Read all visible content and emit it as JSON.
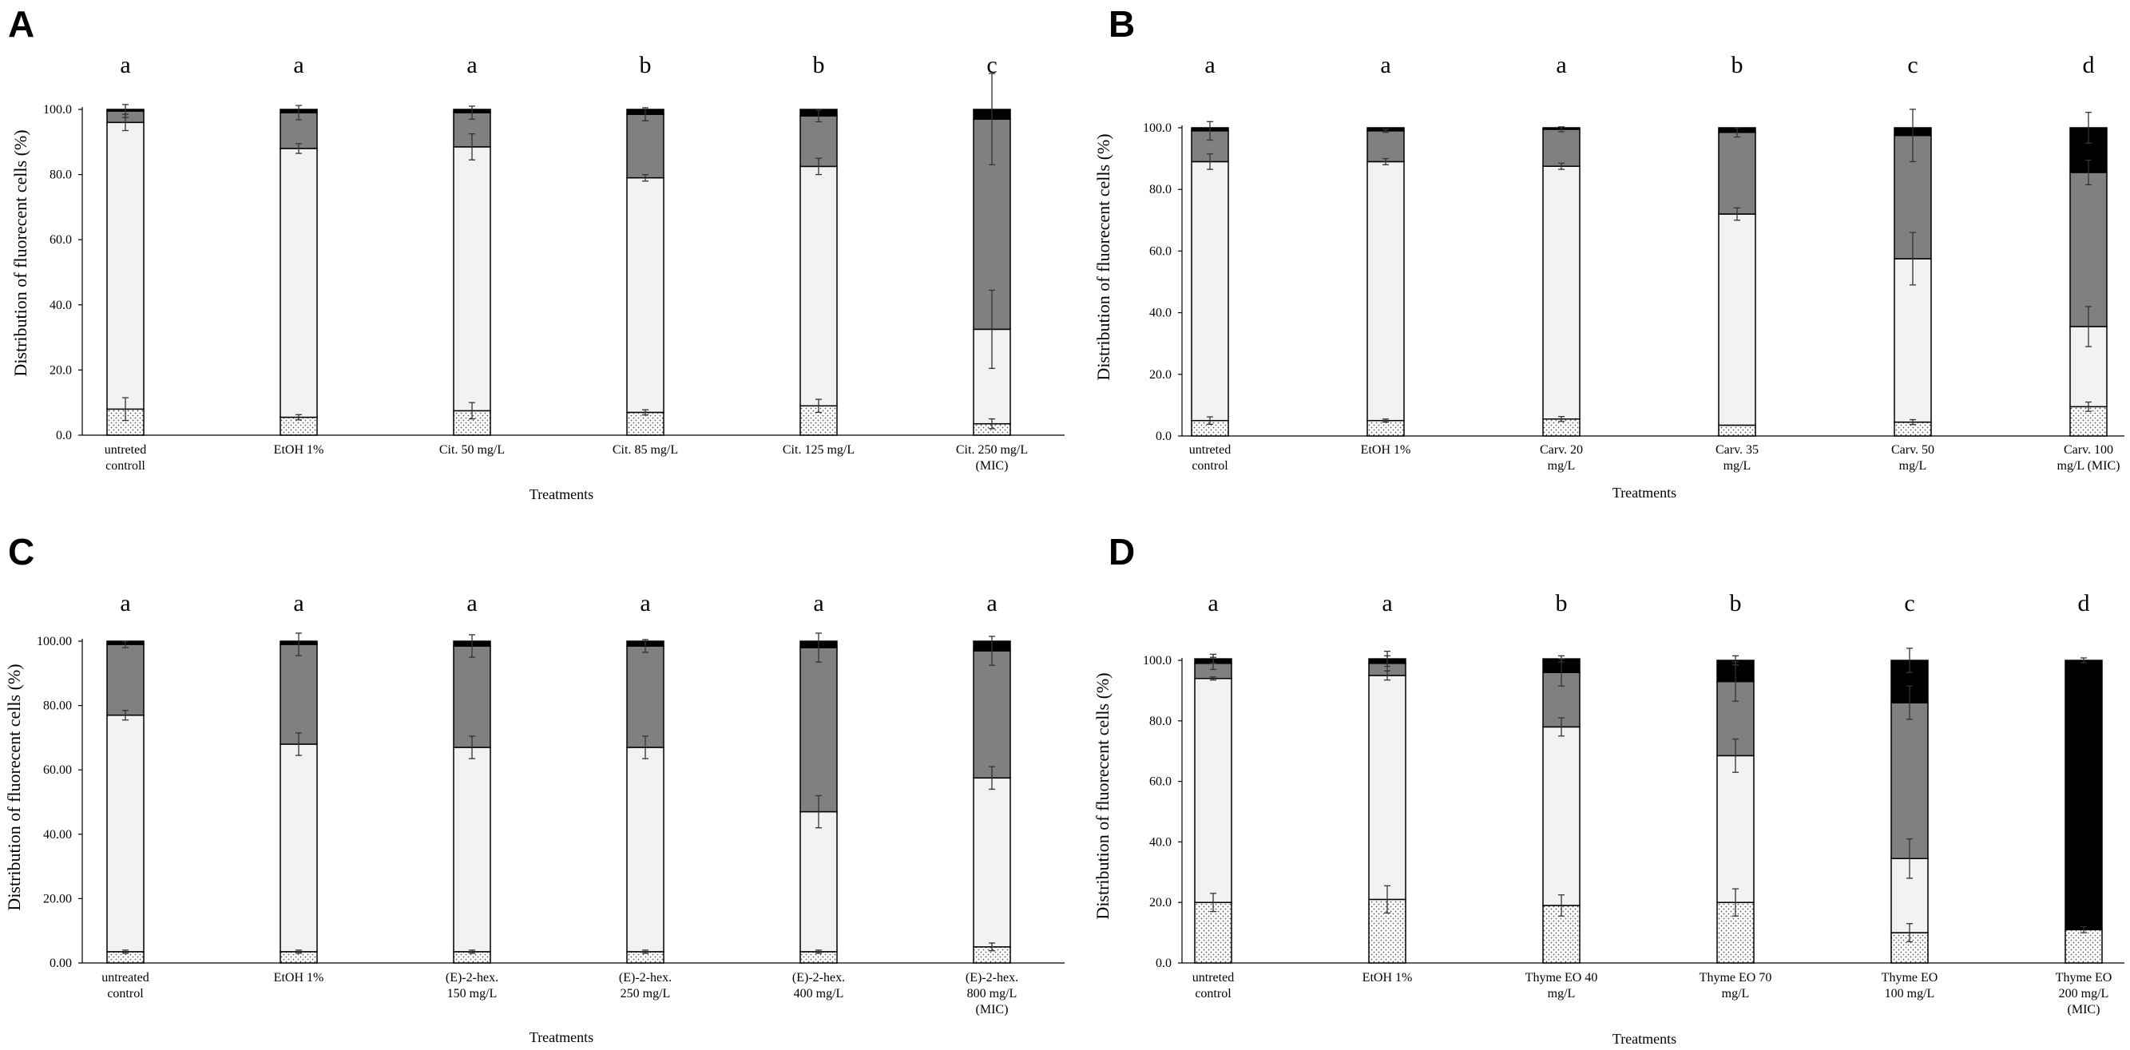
{
  "legend_fills": [
    "dotted",
    "light-grey",
    "dark-grey",
    "black"
  ],
  "colors": {
    "dotted_bg": "#ffffff",
    "dot": "#555555",
    "light": "#f2f2f2",
    "dark": "#808080",
    "black": "#000000",
    "axis": "#000000"
  },
  "chart_data": [
    {
      "type": "bar",
      "stacked": true,
      "panel": "A",
      "xlabel": "Treatments",
      "ylabel": "Distribution of fluorecent cells (%)",
      "ylim": [
        0,
        100
      ],
      "yticks": [
        "0.0",
        "20.0",
        "40.0",
        "60.0",
        "80.0",
        "100.0"
      ],
      "categories": [
        [
          "untreted",
          "controll"
        ],
        [
          "EtOH 1%"
        ],
        [
          "Cit. 50 mg/L"
        ],
        [
          "Cit. 85 mg/L"
        ],
        [
          "Cit. 125 mg/L"
        ],
        [
          "Cit. 250 mg/L",
          "(MIC)"
        ]
      ],
      "significance": [
        "a",
        "a",
        "a",
        "b",
        "b",
        "c"
      ],
      "series": [
        {
          "fill": "dotted",
          "values": [
            8,
            5.5,
            7.5,
            7,
            9,
            3.5
          ],
          "errors": [
            3.5,
            0.8,
            2.5,
            0.8,
            2,
            1.5
          ]
        },
        {
          "fill": "light",
          "values": [
            88,
            82.5,
            81,
            72,
            73.5,
            29
          ],
          "errors": [
            2.5,
            1.5,
            4,
            1,
            2.5,
            12
          ]
        },
        {
          "fill": "dark",
          "values": [
            3.5,
            11,
            10.5,
            19.5,
            15.5,
            64.5
          ],
          "errors": [
            2,
            2.2,
            2,
            2,
            1.8,
            14
          ]
        },
        {
          "fill": "black",
          "values": [
            0.5,
            1,
            1,
            1.5,
            2,
            3
          ],
          "errors": [
            0,
            0,
            0,
            0,
            0,
            0
          ]
        }
      ]
    },
    {
      "type": "bar",
      "stacked": true,
      "panel": "B",
      "xlabel": "Treatments",
      "ylabel": "Distribution of fluorecent cells (%)",
      "ylim": [
        0,
        100
      ],
      "yticks": [
        "0.0",
        "20.0",
        "40.0",
        "60.0",
        "80.0",
        "100.0"
      ],
      "categories": [
        [
          "untreted",
          "control"
        ],
        [
          "EtOH 1%"
        ],
        [
          "Carv. 20",
          "mg/L"
        ],
        [
          "Carv. 35",
          "mg/L"
        ],
        [
          "Carv. 50",
          "mg/L"
        ],
        [
          "Carv. 100",
          "mg/L (MIC)"
        ]
      ],
      "significance": [
        "a",
        "a",
        "a",
        "b",
        "c",
        "d"
      ],
      "series": [
        {
          "fill": "dotted",
          "values": [
            5,
            5,
            5.5,
            3.5,
            4.5,
            9.5
          ],
          "errors": [
            1.2,
            0.5,
            0.8,
            0,
            0.8,
            1.5
          ]
        },
        {
          "fill": "light",
          "values": [
            84,
            84,
            82,
            68.5,
            53,
            26
          ],
          "errors": [
            2.5,
            1,
            1,
            2,
            8.5,
            6.5
          ]
        },
        {
          "fill": "dark",
          "values": [
            10,
            10,
            12,
            26.5,
            40,
            50
          ],
          "errors": [
            3,
            0.5,
            0.8,
            1.5,
            8.5,
            4
          ]
        },
        {
          "fill": "black",
          "values": [
            1,
            1,
            0.5,
            1.5,
            2.5,
            14.5
          ],
          "errors": [
            0,
            0,
            0,
            0,
            0,
            5
          ]
        }
      ]
    },
    {
      "type": "bar",
      "stacked": true,
      "panel": "C",
      "xlabel": "Treatments",
      "ylabel": "Distribution of fluorecent cells (%)",
      "ylim": [
        0,
        100
      ],
      "yticks": [
        "0.00",
        "20.00",
        "40.00",
        "60.00",
        "80.00",
        "100.00"
      ],
      "categories": [
        [
          "untreated",
          "control"
        ],
        [
          "EtOH 1%"
        ],
        [
          "(E)-2-hex.",
          "150 mg/L"
        ],
        [
          "(E)-2-hex.",
          "250 mg/L"
        ],
        [
          "(E)-2-hex.",
          "400 mg/L"
        ],
        [
          "(E)-2-hex.",
          "800 mg/L",
          "(MIC)"
        ]
      ],
      "significance": [
        "a",
        "a",
        "a",
        "a",
        "a",
        "a"
      ],
      "series": [
        {
          "fill": "dotted",
          "values": [
            3.5,
            3.5,
            3.5,
            3.5,
            3.5,
            5
          ],
          "errors": [
            0.5,
            0.5,
            0.5,
            0.5,
            0.5,
            1.2
          ]
        },
        {
          "fill": "light",
          "values": [
            73.5,
            64.5,
            63.5,
            63.5,
            43.5,
            52.5
          ],
          "errors": [
            1.5,
            3.5,
            3.5,
            3.5,
            5,
            3.5
          ]
        },
        {
          "fill": "dark",
          "values": [
            22,
            31,
            31.5,
            31.5,
            51,
            39.5
          ],
          "errors": [
            1,
            3.5,
            3.5,
            2,
            4.5,
            4.5
          ]
        },
        {
          "fill": "black",
          "values": [
            1,
            1,
            1.5,
            1.5,
            2,
            3
          ],
          "errors": [
            0,
            0,
            0,
            0,
            0,
            0
          ]
        }
      ]
    },
    {
      "type": "bar",
      "stacked": true,
      "panel": "D",
      "xlabel": "Treatments",
      "ylabel": "Distribution of fluorecent cells (%)",
      "ylim": [
        0,
        100
      ],
      "yticks": [
        "0.0",
        "20.0",
        "40.0",
        "60.0",
        "80.0",
        "100.0"
      ],
      "categories": [
        [
          "untreted",
          "control"
        ],
        [
          "EtOH 1%"
        ],
        [
          "Thyme EO 40",
          "mg/L"
        ],
        [
          "Thyme EO 70",
          "mg/L"
        ],
        [
          "Thyme EO",
          "100 mg/L"
        ],
        [
          "Thyme EO",
          "200 mg/L",
          "(MIC)"
        ]
      ],
      "significance": [
        "a",
        "a",
        "b",
        "b",
        "c",
        "d"
      ],
      "series": [
        {
          "fill": "dotted",
          "values": [
            20,
            21,
            19,
            20,
            10,
            11
          ],
          "errors": [
            3,
            4.5,
            3.5,
            4.5,
            3,
            1
          ]
        },
        {
          "fill": "light",
          "values": [
            74,
            74,
            59,
            48.5,
            24.5,
            0
          ],
          "errors": [
            0.5,
            1.5,
            3,
            5.5,
            6.5,
            0
          ]
        },
        {
          "fill": "dark",
          "values": [
            5,
            4,
            18,
            24.5,
            51.5,
            0
          ],
          "errors": [
            2,
            2.5,
            4.5,
            6.5,
            5.5,
            0
          ]
        },
        {
          "fill": "black",
          "values": [
            1.5,
            1.5,
            4.5,
            7,
            14,
            89
          ],
          "errors": [
            1.5,
            2.5,
            1,
            1.5,
            4,
            0.8
          ]
        }
      ]
    }
  ]
}
